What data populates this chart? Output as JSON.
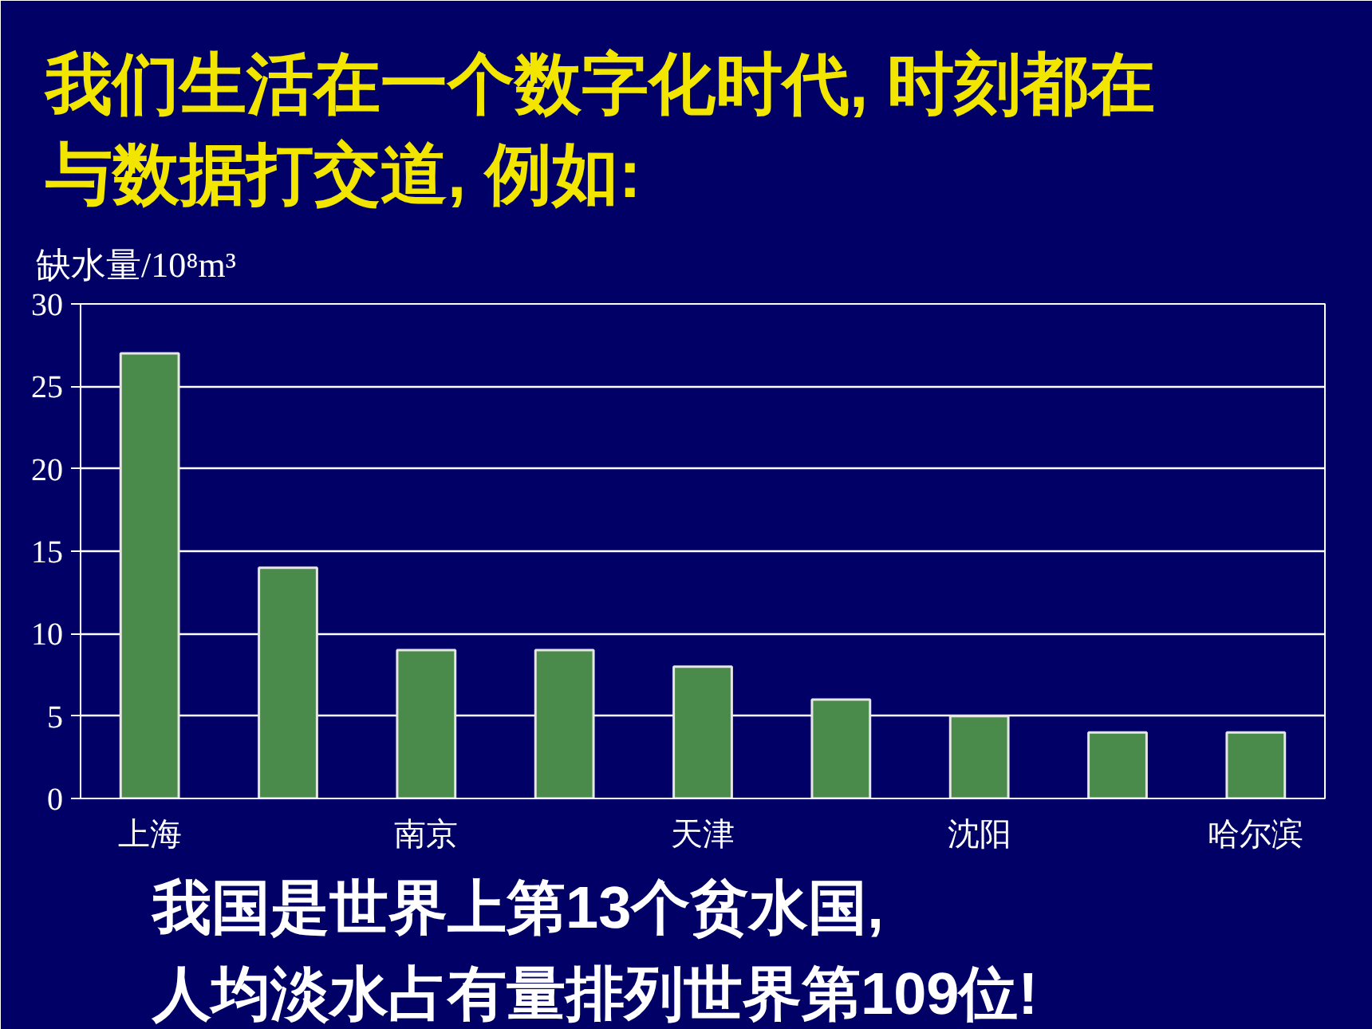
{
  "chart_data": {
    "type": "bar",
    "title": "我们生活在一个数字化时代, 时刻都在与数据打交道, 例如:",
    "ylabel": "缺水量/10⁸m³",
    "categories": [
      "上海",
      null,
      "南京",
      null,
      "天津",
      null,
      "沈阳",
      null,
      "哈尔滨"
    ],
    "values": [
      27,
      14,
      9,
      9,
      8,
      6,
      5,
      4,
      4
    ],
    "color": "#4a8a4a",
    "ylim": [
      0,
      30
    ],
    "yticks": [
      0,
      5,
      10,
      15,
      20,
      25,
      30
    ],
    "grid": "y",
    "annotations": [
      "我国是世界上第13个贫水国,",
      "人均淡水占有量排列世界第109位!"
    ]
  }
}
